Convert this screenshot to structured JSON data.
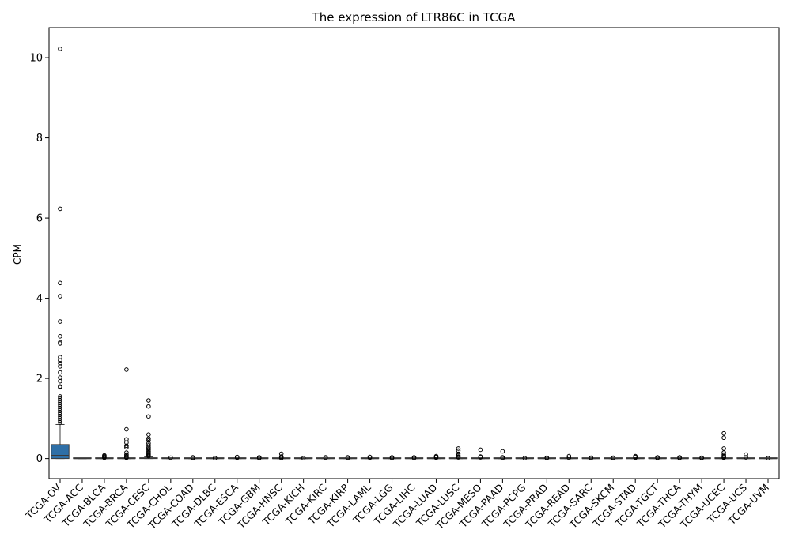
{
  "chart_data": {
    "type": "box",
    "title": "The expression of LTR86C in TCGA",
    "xlabel": "",
    "ylabel": "CPM",
    "ylim": [
      -0.5,
      10.75
    ],
    "yticks": [
      0,
      2,
      4,
      6,
      8,
      10
    ],
    "grid": false,
    "legend": "none",
    "box_color": "#2e6fa7",
    "categories": [
      "TCGA-OV",
      "TCGA-ACC",
      "TCGA-BLCA",
      "TCGA-BRCA",
      "TCGA-CESC",
      "TCGA-CHOL",
      "TCGA-COAD",
      "TCGA-DLBC",
      "TCGA-ESCA",
      "TCGA-GBM",
      "TCGA-HNSC",
      "TCGA-KICH",
      "TCGA-KIRC",
      "TCGA-KIRP",
      "TCGA-LAML",
      "TCGA-LGG",
      "TCGA-LIHC",
      "TCGA-LUAD",
      "TCGA-LUSC",
      "TCGA-MESO",
      "TCGA-PAAD",
      "TCGA-PCPG",
      "TCGA-PRAD",
      "TCGA-READ",
      "TCGA-SARC",
      "TCGA-SKCM",
      "TCGA-STAD",
      "TCGA-TGCT",
      "TCGA-THCA",
      "TCGA-THYM",
      "TCGA-UCEC",
      "TCGA-UCS",
      "TCGA-UVM"
    ],
    "boxes": [
      {
        "q1": 0.0,
        "median": 0.08,
        "q3": 0.35,
        "whisker_low": 0.0,
        "whisker_high": 0.85,
        "outliers": [
          10.22,
          6.23,
          4.38,
          4.05,
          3.42,
          3.05,
          2.9,
          2.87,
          2.53,
          2.45,
          2.38,
          2.3,
          2.15,
          2.02,
          1.93,
          1.8,
          1.78,
          1.55,
          1.5,
          1.45,
          1.4,
          1.35,
          1.3,
          1.25,
          1.2,
          1.15,
          1.1,
          1.05,
          1.0,
          0.95,
          0.9
        ]
      },
      {
        "q1": 0,
        "median": 0,
        "q3": 0,
        "whisker_low": 0,
        "whisker_high": 0,
        "outliers": []
      },
      {
        "q1": 0,
        "median": 0,
        "q3": 0,
        "whisker_low": 0,
        "whisker_high": 0,
        "outliers": [
          0.08,
          0.06,
          0.04,
          0.02
        ]
      },
      {
        "q1": 0,
        "median": 0,
        "q3": 0,
        "whisker_low": 0,
        "whisker_high": 0,
        "outliers": [
          2.22,
          0.73,
          0.48,
          0.4,
          0.32,
          0.28,
          0.15,
          0.1,
          0.08,
          0.05,
          0.03,
          0.02
        ]
      },
      {
        "q1": 0,
        "median": 0.01,
        "q3": 0.02,
        "whisker_low": 0,
        "whisker_high": 0.04,
        "outliers": [
          1.45,
          1.3,
          1.05,
          0.6,
          0.5,
          0.45,
          0.38,
          0.33,
          0.28,
          0.25,
          0.22,
          0.18,
          0.15,
          0.12,
          0.1,
          0.08,
          0.06
        ]
      },
      {
        "q1": 0,
        "median": 0,
        "q3": 0,
        "whisker_low": 0,
        "whisker_high": 0,
        "outliers": [
          0.02
        ]
      },
      {
        "q1": 0,
        "median": 0,
        "q3": 0,
        "whisker_low": 0,
        "whisker_high": 0,
        "outliers": [
          0.03,
          0.01
        ]
      },
      {
        "q1": 0,
        "median": 0,
        "q3": 0,
        "whisker_low": 0,
        "whisker_high": 0,
        "outliers": [
          0.01
        ]
      },
      {
        "q1": 0,
        "median": 0,
        "q3": 0,
        "whisker_low": 0,
        "whisker_high": 0,
        "outliers": [
          0.04,
          0.02
        ]
      },
      {
        "q1": 0,
        "median": 0,
        "q3": 0,
        "whisker_low": 0,
        "whisker_high": 0,
        "outliers": [
          0.03,
          0.01
        ]
      },
      {
        "q1": 0,
        "median": 0,
        "q3": 0,
        "whisker_low": 0,
        "whisker_high": 0,
        "outliers": [
          0.12,
          0.05,
          0.03,
          0.01
        ]
      },
      {
        "q1": 0,
        "median": 0,
        "q3": 0,
        "whisker_low": 0,
        "whisker_high": 0,
        "outliers": [
          0.01
        ]
      },
      {
        "q1": 0,
        "median": 0,
        "q3": 0,
        "whisker_low": 0,
        "whisker_high": 0,
        "outliers": [
          0.03,
          0.01
        ]
      },
      {
        "q1": 0,
        "median": 0,
        "q3": 0,
        "whisker_low": 0,
        "whisker_high": 0,
        "outliers": [
          0.03,
          0.01
        ]
      },
      {
        "q1": 0,
        "median": 0,
        "q3": 0,
        "whisker_low": 0,
        "whisker_high": 0,
        "outliers": [
          0.04,
          0.02
        ]
      },
      {
        "q1": 0,
        "median": 0,
        "q3": 0,
        "whisker_low": 0,
        "whisker_high": 0,
        "outliers": [
          0.03,
          0.01
        ]
      },
      {
        "q1": 0,
        "median": 0,
        "q3": 0,
        "whisker_low": 0,
        "whisker_high": 0,
        "outliers": [
          0.03,
          0.01
        ]
      },
      {
        "q1": 0,
        "median": 0,
        "q3": 0,
        "whisker_low": 0,
        "whisker_high": 0,
        "outliers": [
          0.06,
          0.04,
          0.02
        ]
      },
      {
        "q1": 0,
        "median": 0,
        "q3": 0,
        "whisker_low": 0,
        "whisker_high": 0,
        "outliers": [
          0.25,
          0.2,
          0.12,
          0.08,
          0.05,
          0.03
        ]
      },
      {
        "q1": 0,
        "median": 0,
        "q3": 0,
        "whisker_low": 0,
        "whisker_high": 0,
        "outliers": [
          0.22,
          0.05,
          0.03
        ]
      },
      {
        "q1": 0,
        "median": 0,
        "q3": 0,
        "whisker_low": 0,
        "whisker_high": 0,
        "outliers": [
          0.18,
          0.03,
          0.01
        ]
      },
      {
        "q1": 0,
        "median": 0,
        "q3": 0,
        "whisker_low": 0,
        "whisker_high": 0,
        "outliers": [
          0.01
        ]
      },
      {
        "q1": 0,
        "median": 0,
        "q3": 0,
        "whisker_low": 0,
        "whisker_high": 0,
        "outliers": [
          0.02,
          0.01
        ]
      },
      {
        "q1": 0,
        "median": 0,
        "q3": 0,
        "whisker_low": 0,
        "whisker_high": 0,
        "outliers": [
          0.06,
          0.02
        ]
      },
      {
        "q1": 0,
        "median": 0,
        "q3": 0,
        "whisker_low": 0,
        "whisker_high": 0,
        "outliers": [
          0.02,
          0.01
        ]
      },
      {
        "q1": 0,
        "median": 0,
        "q3": 0,
        "whisker_low": 0,
        "whisker_high": 0,
        "outliers": [
          0.02,
          0.01
        ]
      },
      {
        "q1": 0,
        "median": 0,
        "q3": 0,
        "whisker_low": 0,
        "whisker_high": 0,
        "outliers": [
          0.06,
          0.04,
          0.02
        ]
      },
      {
        "q1": 0,
        "median": 0,
        "q3": 0,
        "whisker_low": 0,
        "whisker_high": 0,
        "outliers": [
          0.03,
          0.01
        ]
      },
      {
        "q1": 0,
        "median": 0,
        "q3": 0,
        "whisker_low": 0,
        "whisker_high": 0,
        "outliers": [
          0.03,
          0.01
        ]
      },
      {
        "q1": 0,
        "median": 0,
        "q3": 0,
        "whisker_low": 0,
        "whisker_high": 0,
        "outliers": [
          0.02,
          0.01
        ]
      },
      {
        "q1": 0,
        "median": 0,
        "q3": 0,
        "whisker_low": 0,
        "whisker_high": 0,
        "outliers": [
          0.63,
          0.52,
          0.25,
          0.15,
          0.1,
          0.07,
          0.05,
          0.03,
          0.02
        ]
      },
      {
        "q1": 0,
        "median": 0,
        "q3": 0,
        "whisker_low": 0,
        "whisker_high": 0,
        "outliers": [
          0.1,
          0.03
        ]
      },
      {
        "q1": 0,
        "median": 0,
        "q3": 0,
        "whisker_low": 0,
        "whisker_high": 0,
        "outliers": [
          0.01
        ]
      }
    ]
  }
}
